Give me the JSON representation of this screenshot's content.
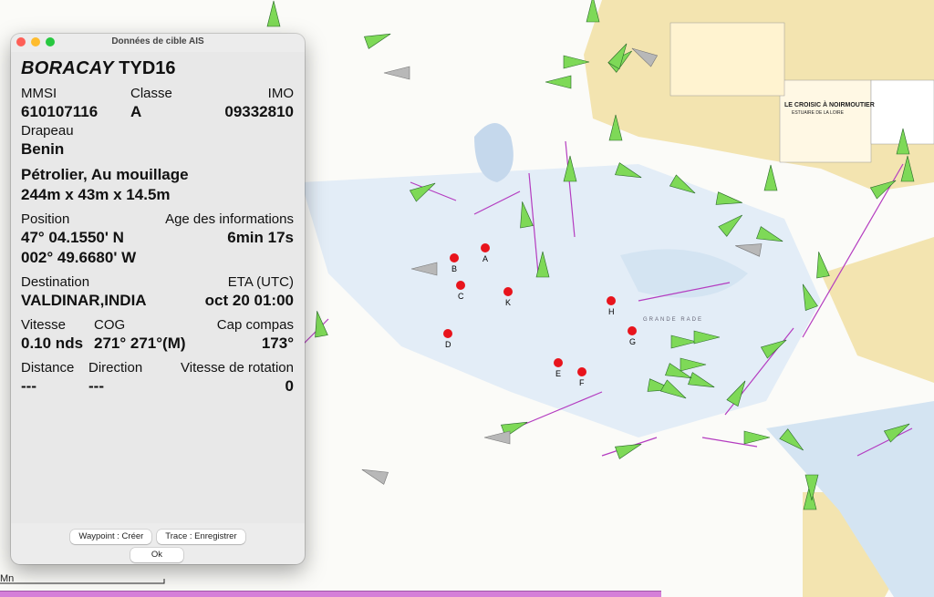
{
  "dialog": {
    "title": "Données de cible AIS",
    "ship_name": "BORACAY",
    "callsign": "TYD16",
    "mmsi_label": "MMSI",
    "mmsi": "610107116",
    "class_label": "Classe",
    "class": "A",
    "imo_label": "IMO",
    "imo": "09332810",
    "flag_label": "Drapeau",
    "flag": "Benin",
    "type_status": "Pétrolier, Au mouillage",
    "dimensions": "244m x 43m x 14.5m",
    "position_label": "Position",
    "lat": "47° 04.1550' N",
    "lon": "002° 49.6680' W",
    "age_label": "Age des informations",
    "age": "6min 17s",
    "destination_label": "Destination",
    "destination": "VALDINAR,INDIA",
    "eta_label": "ETA (UTC)",
    "eta": "oct 20 01:00",
    "speed_label": "Vitesse",
    "speed": "0.10 nds",
    "cog_label": "COG",
    "cog": "271° 271°(M)",
    "heading_label": "Cap compas",
    "heading": "173°",
    "distance_label": "Distance",
    "distance": "---",
    "direction_label": "Direction",
    "direction": "---",
    "rot_label": "Vitesse de rotation",
    "rot": "0",
    "waypoint_button": "Waypoint : Créer",
    "track_button": "Trace : Enregistrer",
    "ok_button": "Ok"
  },
  "map": {
    "chart_title": "LE CROISIC À NOIRMOUTIER",
    "chart_subtitle": "ESTUAIRE DE LA LOIRE",
    "area_label": "GRANDE RADE",
    "scale_label": "Mn",
    "markers": [
      "A",
      "B",
      "C",
      "K",
      "E",
      "F",
      "H",
      "G",
      "D"
    ],
    "colors": {
      "ship": "#7ed957",
      "land": "#f3e4b0",
      "shallow": "#dbe8f4",
      "route": "#b43cc0"
    }
  }
}
